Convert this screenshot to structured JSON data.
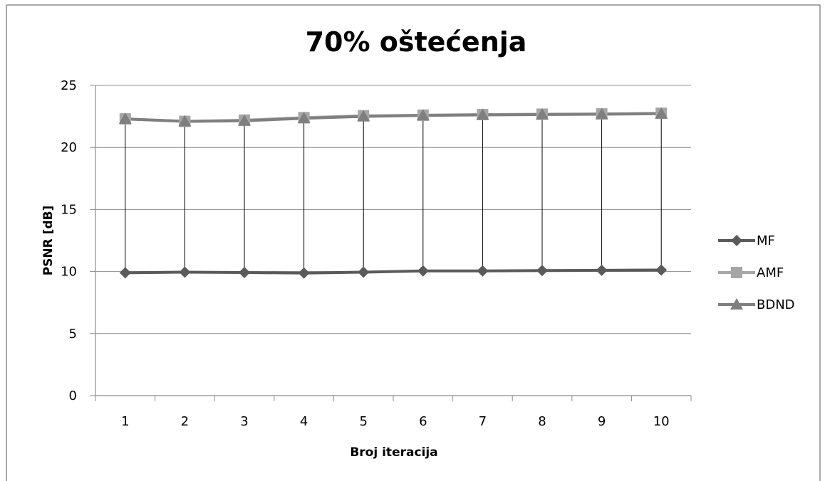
{
  "chart_data": {
    "type": "line",
    "title": "70% oštećenja",
    "xlabel": "Broj iteracija",
    "ylabel": "PSNR [dB]",
    "categories": [
      "1",
      "2",
      "3",
      "4",
      "5",
      "6",
      "7",
      "8",
      "9",
      "10"
    ],
    "ylim": [
      0,
      25
    ],
    "yticks": [
      "0",
      "5",
      "10",
      "15",
      "20",
      "25"
    ],
    "grid": "horizontal",
    "legend_position": "right",
    "high_low_lines": true,
    "series": [
      {
        "name": "MF",
        "marker": "diamond",
        "color": "#5a5a5a",
        "values": [
          9.9,
          9.95,
          9.92,
          9.88,
          9.95,
          10.05,
          10.05,
          10.08,
          10.1,
          10.12
        ]
      },
      {
        "name": "AMF",
        "marker": "square",
        "color": "#a6a6a6",
        "values": [
          22.3,
          22.1,
          22.2,
          22.4,
          22.55,
          22.6,
          22.65,
          22.68,
          22.7,
          22.75
        ]
      },
      {
        "name": "BDND",
        "marker": "triangle",
        "color": "#7f7f7f",
        "values": [
          22.3,
          22.1,
          22.15,
          22.35,
          22.5,
          22.58,
          22.62,
          22.65,
          22.68,
          22.72
        ]
      }
    ]
  }
}
